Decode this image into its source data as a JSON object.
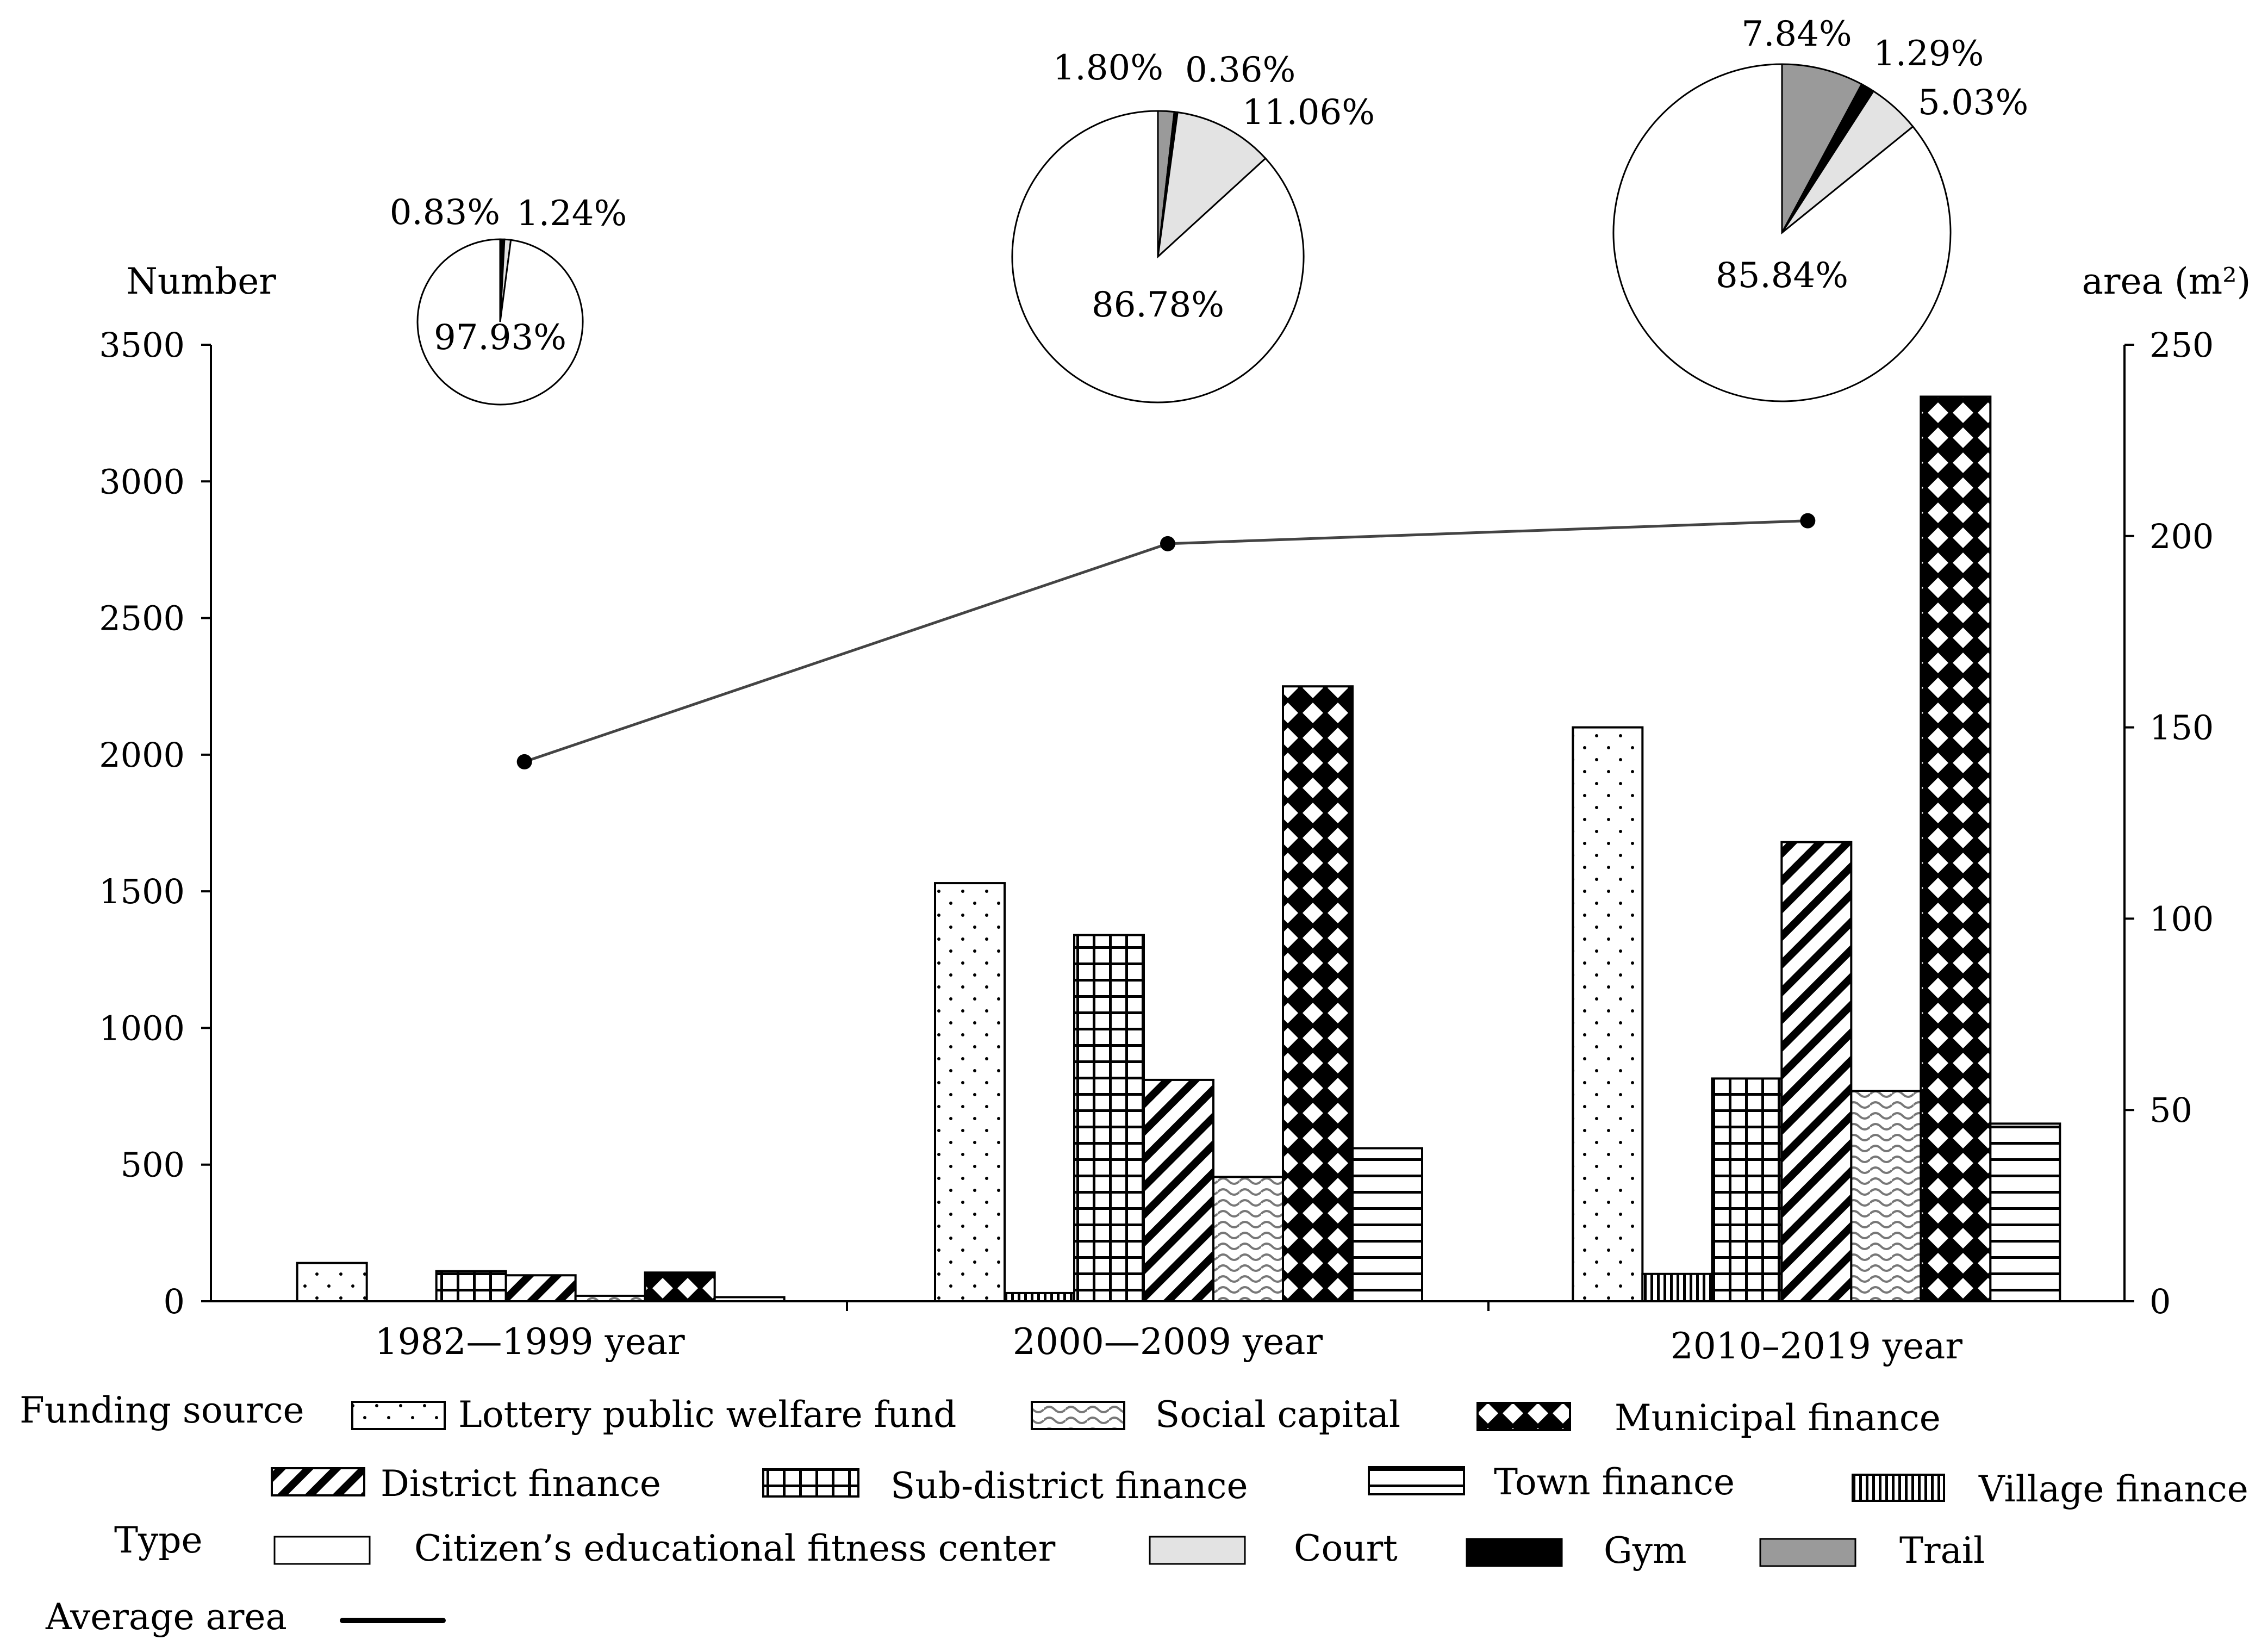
{
  "chart_data": {
    "type": "bar",
    "categories": [
      "1982—1999 year",
      "2000—2009 year",
      "2010–2019 year"
    ],
    "left_axis": {
      "label": "Number",
      "min": 0,
      "max": 3500,
      "ticks": [
        0,
        500,
        1000,
        1500,
        2000,
        2500,
        3000,
        3500
      ]
    },
    "right_axis": {
      "label": "area (m²)",
      "min": 0,
      "max": 250,
      "ticks": [
        0,
        50,
        100,
        150,
        200,
        250
      ]
    },
    "series": [
      {
        "name": "Lottery public welfare fund",
        "pattern": "dots",
        "values": [
          140,
          1530,
          2100
        ]
      },
      {
        "name": "Village finance",
        "pattern": "vlines",
        "values": [
          0,
          30,
          100
        ]
      },
      {
        "name": "Sub-district finance",
        "pattern": "grid",
        "values": [
          110,
          1340,
          815
        ]
      },
      {
        "name": "District finance",
        "pattern": "diag",
        "values": [
          95,
          810,
          1680
        ]
      },
      {
        "name": "Social capital",
        "pattern": "wave",
        "values": [
          20,
          455,
          770
        ]
      },
      {
        "name": "Municipal finance",
        "pattern": "diamond",
        "values": [
          105,
          2250,
          3310
        ]
      },
      {
        "name": "Town finance",
        "pattern": "hlines",
        "values": [
          15,
          560,
          650
        ]
      }
    ],
    "line": {
      "name": "Average area",
      "values": [
        141,
        198,
        204
      ]
    },
    "pies": [
      {
        "slices": [
          {
            "type": "Citizen’s educational fitness center",
            "value": 97.93,
            "label": "97.93%"
          },
          {
            "type": "Court",
            "value": 1.24,
            "label": "1.24%"
          },
          {
            "type": "Gym",
            "value": 0.83,
            "label": "0.83%"
          }
        ]
      },
      {
        "slices": [
          {
            "type": "Citizen’s educational fitness center",
            "value": 86.78,
            "label": "86.78%"
          },
          {
            "type": "Court",
            "value": 11.06,
            "label": "11.06%"
          },
          {
            "type": "Gym",
            "value": 0.36,
            "label": "0.36%"
          },
          {
            "type": "Trail",
            "value": 1.8,
            "label": "1.80%"
          }
        ]
      },
      {
        "slices": [
          {
            "type": "Citizen’s educational fitness center",
            "value": 85.84,
            "label": "85.84%"
          },
          {
            "type": "Court",
            "value": 5.03,
            "label": "5.03%"
          },
          {
            "type": "Gym",
            "value": 1.29,
            "label": "1.29%"
          },
          {
            "type": "Trail",
            "value": 7.84,
            "label": "7.84%"
          }
        ]
      }
    ],
    "legend": {
      "funding_title": "Funding source",
      "type_title": "Type",
      "average_title": "Average area",
      "funding": [
        {
          "name": "Lottery public welfare fund",
          "pattern": "dots"
        },
        {
          "name": "Social capital",
          "pattern": "wave"
        },
        {
          "name": "Municipal finance",
          "pattern": "diamond"
        },
        {
          "name": "District finance",
          "pattern": "diag"
        },
        {
          "name": "Sub-district finance",
          "pattern": "grid"
        },
        {
          "name": "Town finance",
          "pattern": "hlines"
        },
        {
          "name": "Village finance",
          "pattern": "vlines"
        }
      ],
      "types": [
        {
          "name": "Citizen’s educational fitness center",
          "color": "#ffffff"
        },
        {
          "name": "Court",
          "color": "#e3e3e3"
        },
        {
          "name": "Gym",
          "color": "#000000"
        },
        {
          "name": "Trail",
          "color": "#9a9a9a"
        }
      ]
    }
  }
}
